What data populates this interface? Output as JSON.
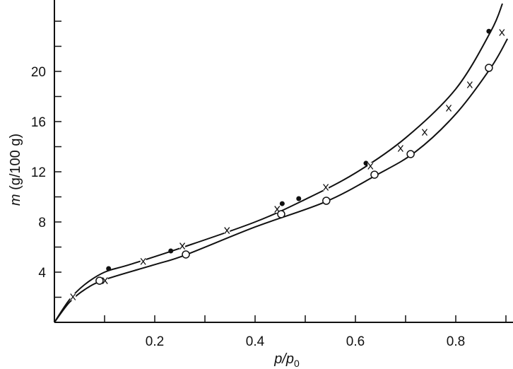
{
  "chart_data": {
    "type": "scatter",
    "title": "",
    "xlabel": "p/p0",
    "ylabel": "m (g/100 g)",
    "xlim": [
      0,
      0.915
    ],
    "ylim": [
      0,
      25.7
    ],
    "x_ticks": [
      0.2,
      0.4,
      0.6,
      0.8
    ],
    "x_tick_labels": [
      "0.2",
      "0.4",
      "0.6",
      "0.8"
    ],
    "x_minor_ticks": [
      0.1,
      0.3,
      0.5,
      0.7,
      0.9
    ],
    "y_ticks": [
      4,
      8,
      12,
      16,
      20
    ],
    "y_tick_labels": [
      "4",
      "8",
      "12",
      "16",
      "20"
    ],
    "y_minor_ticks": [
      2,
      6,
      10,
      14,
      18,
      22,
      24
    ],
    "grid": false,
    "legend": "none",
    "colors": {
      "ink": "#111111",
      "background": "#ffffff"
    },
    "series": [
      {
        "marker": "filled-circle",
        "x": [
          0.108,
          0.232,
          0.454,
          0.487,
          0.621,
          0.866
        ],
        "y": [
          4.28,
          5.69,
          9.46,
          9.86,
          12.68,
          23.2
        ]
      },
      {
        "marker": "cross",
        "x": [
          0.037,
          0.101,
          0.177,
          0.255,
          0.344,
          0.444,
          0.541,
          0.63,
          0.69,
          0.738,
          0.786,
          0.828,
          0.892
        ],
        "y": [
          2.03,
          3.32,
          4.85,
          6.08,
          7.32,
          9.01,
          10.76,
          12.45,
          13.86,
          15.15,
          17.07,
          18.93,
          23.1
        ]
      },
      {
        "marker": "open-circle",
        "x": [
          0.09,
          0.262,
          0.452,
          0.542,
          0.638,
          0.71,
          0.866
        ],
        "y": [
          3.32,
          5.41,
          8.62,
          9.69,
          11.77,
          13.41,
          20.28
        ]
      }
    ],
    "curves": [
      {
        "x": [
          0,
          0.03,
          0.06,
          0.1,
          0.15,
          0.25,
          0.4,
          0.5,
          0.6,
          0.7,
          0.8,
          0.87,
          0.893
        ],
        "y": [
          0,
          1.8,
          3.0,
          4.0,
          4.6,
          5.9,
          8.0,
          9.8,
          11.9,
          14.7,
          18.6,
          23.2,
          25.4
        ]
      },
      {
        "x": [
          0,
          0.03,
          0.06,
          0.1,
          0.2,
          0.26,
          0.4,
          0.54,
          0.64,
          0.72,
          0.8,
          0.87,
          0.903
        ],
        "y": [
          0,
          1.6,
          2.6,
          3.4,
          4.6,
          5.35,
          7.6,
          9.6,
          11.7,
          13.6,
          16.6,
          20.3,
          22.6
        ]
      }
    ]
  }
}
